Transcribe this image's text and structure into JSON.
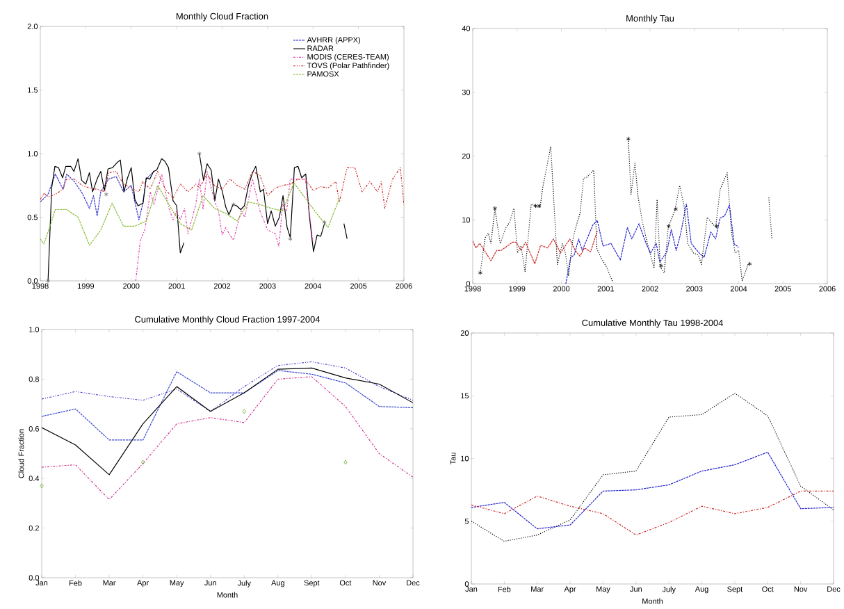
{
  "chart_data": [
    {
      "type": "line",
      "title": "Monthly Cloud Fraction",
      "xlim": [
        1998,
        2006
      ],
      "xticks": [
        1998,
        1999,
        2000,
        2001,
        2002,
        2003,
        2004,
        2005,
        2006
      ],
      "ylim": [
        0,
        2
      ],
      "yticks": [
        {
          "value": 0,
          "label": "0.0"
        },
        {
          "value": 0.5,
          "label": "0.5"
        },
        {
          "value": 1,
          "label": "1.0"
        },
        {
          "value": 1.5,
          "label": "1.5"
        },
        {
          "value": 2,
          "label": "2.0"
        }
      ],
      "legend": "top right",
      "marker": "none",
      "series": [
        {
          "name": "AVHRR (APPX)",
          "color": "#3333cc",
          "line_style": "dashed",
          "x": [
            1998.0,
            1998.17,
            1998.33,
            1998.5,
            1998.58,
            1998.75,
            1998.92,
            1999.08,
            1999.17,
            1999.25,
            1999.33,
            1999.5,
            1999.67,
            1999.83,
            2000.0,
            2000.08,
            2000.17,
            2000.25,
            2000.33,
            2000.5
          ],
          "values": [
            0.62,
            0.68,
            0.84,
            0.72,
            0.84,
            0.78,
            0.69,
            0.57,
            0.67,
            0.51,
            0.7,
            0.8,
            0.82,
            0.7,
            0.75,
            0.62,
            0.48,
            0.6,
            0.8,
            0.86
          ]
        },
        {
          "name": "RADAR",
          "color": "#000000",
          "line_style": "solid",
          "x": [
            1998.17,
            1998.25,
            1998.32,
            1998.4,
            1998.49,
            1998.56,
            1998.67,
            1998.74,
            1998.83,
            1998.91,
            1999.0,
            1999.08,
            1999.15,
            1999.26,
            1999.33,
            1999.41,
            1999.49,
            1999.59,
            1999.69,
            1999.76,
            1999.84,
            1999.92,
            2000.0,
            2000.08,
            2000.15,
            2000.26,
            2000.33,
            2000.41,
            2000.49,
            2000.56,
            2000.67,
            2000.74,
            2000.82,
            2000.92,
            2001.0,
            2001.08,
            2001.16,
            2001.33,
            2001.5,
            2001.59,
            2001.67,
            2001.76,
            2001.84,
            2001.92,
            2002.0,
            2002.08,
            2002.15,
            2002.24,
            2002.32,
            2002.41,
            2002.49,
            2002.58,
            2002.67,
            2002.74,
            2002.84,
            2002.91,
            2003.0,
            2003.08,
            2003.17,
            2003.26,
            2003.34,
            2003.43,
            2003.5,
            2003.59,
            2003.67,
            2003.75,
            2003.84,
            2003.92,
            2004.01,
            2004.09,
            2004.17,
            2004.26,
            2004.47,
            2004.68,
            2004.75
          ],
          "values": [
            0.0,
            0.73,
            0.9,
            0.89,
            0.81,
            0.9,
            0.9,
            0.86,
            0.96,
            0.79,
            0.76,
            0.85,
            0.7,
            0.81,
            0.86,
            0.71,
            0.88,
            0.89,
            0.93,
            0.95,
            0.7,
            0.81,
            0.89,
            0.64,
            0.59,
            0.61,
            0.81,
            0.8,
            0.86,
            0.87,
            0.96,
            0.94,
            0.89,
            0.63,
            0.59,
            0.22,
            0.3,
            null,
            1.0,
            0.79,
            0.92,
            0.87,
            0.63,
            0.8,
            0.71,
            0.58,
            0.52,
            0.6,
            0.59,
            0.56,
            0.59,
            0.75,
            0.85,
            0.9,
            0.7,
            0.72,
            0.45,
            0.55,
            0.43,
            0.5,
            0.67,
            0.42,
            0.34,
            0.89,
            0.9,
            0.81,
            0.84,
            0.51,
            0.23,
            0.36,
            0.35,
            0.46,
            null,
            0.45,
            0.33
          ]
        },
        {
          "name": "MODIS (CERES-TEAM)",
          "color": "#e040b0",
          "line_style": "dashdot",
          "x": [
            2000.1,
            2000.2,
            2000.3,
            2000.42,
            2000.5,
            2000.67,
            2000.83,
            2000.92,
            2001.0,
            2001.08,
            2001.17,
            2001.25,
            2001.42,
            2001.5,
            2001.58,
            2001.67,
            2001.83,
            2001.92,
            2002.0,
            2002.08,
            2002.17,
            2002.25,
            2002.42,
            2002.5,
            2002.67,
            2002.83,
            2003.0,
            2003.17,
            2003.25,
            2003.33,
            2003.42,
            2003.5,
            2003.67,
            2003.83,
            2004.0
          ],
          "values": [
            0.0,
            0.32,
            0.4,
            0.7,
            0.6,
            0.84,
            0.57,
            0.48,
            0.55,
            0.48,
            0.57,
            0.37,
            0.6,
            0.8,
            0.56,
            0.86,
            0.63,
            0.55,
            0.36,
            0.42,
            0.36,
            0.32,
            0.55,
            0.5,
            0.8,
            0.55,
            0.4,
            0.37,
            0.27,
            0.6,
            0.55,
            0.8,
            0.8,
            0.8,
            0.3
          ]
        },
        {
          "name": "TOVS (Polar Pathfinder)",
          "color": "#cc2222",
          "line_style": "dashdotdot",
          "x": [
            1998.0,
            1998.08,
            1998.17,
            1998.33,
            1998.5,
            1998.58,
            1998.75,
            1998.92,
            1999.08,
            1999.25,
            1999.42,
            1999.5,
            1999.67,
            1999.83,
            2000.0,
            2000.17,
            2000.25,
            2000.42,
            2000.58,
            2000.75,
            2000.92,
            2001.08,
            2001.25,
            2001.42,
            2001.5,
            2001.67,
            2001.83,
            2002.0,
            2002.17,
            2002.33,
            2002.5,
            2002.67,
            2002.83,
            2003.0,
            2003.17,
            2003.33,
            2003.5,
            2003.67,
            2003.83,
            2004.0,
            2004.17,
            2004.33,
            2004.5,
            2004.58,
            2004.75,
            2004.92,
            2005.08,
            2005.25,
            2005.42,
            2005.5,
            2005.58,
            2005.75,
            2005.92,
            2006.0
          ],
          "values": [
            0.64,
            0.69,
            0.66,
            0.68,
            0.72,
            0.8,
            0.8,
            0.75,
            0.73,
            0.72,
            0.7,
            0.85,
            0.86,
            0.76,
            0.73,
            0.7,
            0.78,
            0.72,
            0.86,
            0.72,
            0.65,
            0.76,
            0.7,
            0.76,
            0.73,
            0.84,
            0.75,
            0.72,
            0.8,
            0.75,
            0.72,
            0.86,
            0.83,
            0.67,
            0.73,
            0.75,
            0.76,
            0.8,
            0.8,
            0.71,
            0.74,
            0.73,
            0.78,
            0.62,
            0.89,
            0.89,
            0.7,
            0.78,
            0.7,
            0.78,
            0.57,
            0.8,
            0.89,
            0.6
          ]
        },
        {
          "name": "PAMOSX",
          "color": "#88bb33",
          "line_style": "dashed",
          "x": [
            1998.0,
            1998.08,
            1998.25,
            1998.33,
            1998.58,
            1998.83,
            1999.08,
            1999.33,
            1999.58,
            1999.83,
            2000.08,
            2000.33,
            2000.58,
            2000.83,
            2001.08,
            2001.33,
            2001.58,
            2001.83,
            2002.08,
            2002.33,
            2002.58,
            2002.83,
            2003.08,
            2003.33,
            2003.58,
            2003.83,
            2004.08,
            2004.33,
            2004.58
          ],
          "values": [
            0.33,
            0.29,
            0.47,
            0.56,
            0.56,
            0.5,
            0.28,
            0.4,
            0.61,
            0.43,
            0.43,
            0.47,
            0.75,
            0.6,
            0.45,
            0.4,
            0.67,
            0.57,
            0.53,
            0.47,
            0.62,
            0.6,
            0.57,
            0.55,
            0.77,
            0.65,
            0.53,
            0.42,
            0.65
          ]
        },
        {
          "type": "scatter",
          "marker": "cross",
          "color": "#666666",
          "x": [
            1998.17,
            1999.45,
            2001.5,
            2002.25,
            2003.5,
            2004.25
          ],
          "values": [
            0.0,
            0.68,
            1.0,
            0.6,
            0.33,
            0.46
          ]
        }
      ]
    },
    {
      "type": "line",
      "title": "Monthly Tau",
      "xlim": [
        1998,
        2006
      ],
      "xticks": [
        1998,
        1999,
        2000,
        2001,
        2002,
        2003,
        2004,
        2005,
        2006
      ],
      "ylim": [
        0,
        40
      ],
      "yticks": [
        0,
        10,
        20,
        30,
        40
      ],
      "marker": "none",
      "series": [
        {
          "color": "#000000",
          "line_style": "dotted",
          "x": [
            1998.17,
            1998.28,
            1998.35,
            1998.41,
            1998.5,
            1998.62,
            1998.75,
            1998.83,
            1998.93,
            1999.01,
            1999.09,
            1999.18,
            1999.32,
            1999.43,
            1999.52,
            1999.58,
            1999.76,
            1999.91,
            2000.02,
            2000.09,
            2000.16,
            2000.26,
            2000.34,
            2000.42,
            2000.5,
            2000.58,
            2000.66,
            2000.73,
            2000.8,
            2000.89,
            2001.02,
            2001.15,
            2001.33,
            2001.51,
            2001.57,
            2001.66,
            2001.73,
            2001.83,
            2001.94,
            2002.09,
            2002.16,
            2002.23,
            2002.32,
            2002.41,
            2002.56,
            2002.67,
            2002.77,
            2002.85,
            2002.98,
            2003.09,
            2003.16,
            2003.29,
            2003.48,
            2003.58,
            2003.74,
            2003.84,
            2003.92,
            2004.0,
            2004.08,
            2004.21,
            2004.25,
            2004.47,
            2004.68,
            2004.75
          ],
          "values": [
            1.7,
            7.2,
            7.9,
            6.3,
            11.7,
            6.3,
            8.8,
            9.6,
            11.8,
            4.8,
            5.9,
            1.9,
            12.5,
            12.0,
            12.0,
            15.1,
            21.5,
            3.0,
            6.3,
            4.8,
            1.2,
            7.0,
            9.2,
            11.0,
            16.5,
            16.7,
            17.3,
            17.8,
            5.5,
            4.1,
            2.6,
            0.4,
            null,
            22.7,
            14.0,
            18.9,
            13.6,
            9.6,
            6.3,
            2.4,
            13.2,
            2.6,
            1.7,
            8.8,
            11.5,
            15.4,
            12.1,
            6.3,
            4.8,
            4.5,
            3.0,
            10.4,
            8.8,
            14.7,
            17.4,
            8.0,
            4.8,
            5.2,
            0.4,
            3.0,
            3.1,
            null,
            13.5,
            7.0
          ]
        },
        {
          "color": "#2222cc",
          "line_style": "dashed",
          "x": [
            2000.1,
            2000.21,
            2000.29,
            2000.39,
            2000.47,
            2000.71,
            2000.81,
            2000.94,
            2001.12,
            2001.33,
            2001.49,
            2001.59,
            2001.75,
            2001.91,
            2002.01,
            2002.14,
            2002.22,
            2002.38,
            2002.48,
            2002.59,
            2002.69,
            2002.82,
            2002.93,
            2003.11,
            2003.22,
            2003.37,
            2003.48,
            2003.58,
            2003.68,
            2003.79,
            2003.9,
            2004.0
          ],
          "values": [
            0.0,
            4.1,
            4.5,
            7.0,
            5.2,
            9.2,
            9.9,
            5.9,
            6.3,
            3.7,
            8.8,
            7.0,
            9.4,
            6.3,
            4.8,
            6.3,
            3.4,
            5.0,
            8.5,
            5.2,
            7.8,
            12.5,
            6.3,
            4.8,
            4.1,
            8.1,
            7.0,
            10.3,
            10.6,
            12.3,
            6.2,
            5.7
          ]
        },
        {
          "color": "#cc2222",
          "line_style": "dashed",
          "x": [
            1998.0,
            1998.07,
            1998.16,
            1998.41,
            1998.54,
            1998.64,
            1998.9,
            1998.98,
            1999.09,
            1999.19,
            1999.4,
            1999.53,
            1999.69,
            1999.82,
            1999.98,
            2000.19,
            2000.31,
            2000.42,
            2000.52,
            2000.66,
            2000.81
          ],
          "values": [
            6.7,
            5.6,
            6.3,
            3.6,
            5.2,
            5.2,
            6.5,
            6.5,
            5.2,
            6.5,
            3.1,
            6.0,
            5.6,
            7.0,
            4.8,
            7.0,
            5.2,
            4.3,
            5.6,
            5.0,
            8.3
          ]
        },
        {
          "type": "scatter",
          "marker": "cross",
          "color": "#000000",
          "x": [
            1998.17,
            1998.5,
            1999.42,
            1999.5,
            2001.51,
            2002.25,
            2002.42,
            2002.58,
            2003.5,
            2004.25
          ],
          "values": [
            1.7,
            11.8,
            12.2,
            12.2,
            22.7,
            2.8,
            9.0,
            11.7,
            9.0,
            3.1
          ]
        }
      ]
    },
    {
      "type": "line",
      "title": "Cumulative Monthly Cloud Fraction 1997-2004",
      "xlabel": "Month",
      "ylabel": "Cloud Fraction",
      "categories": [
        "Jan",
        "Feb",
        "Mar",
        "Apr",
        "May",
        "Jun",
        "July",
        "Aug",
        "Sept",
        "Oct",
        "Nov",
        "Dec"
      ],
      "ylim": [
        0,
        1
      ],
      "yticks": [
        {
          "value": 0,
          "label": "0.0"
        },
        {
          "value": 0.2,
          "label": "0.2"
        },
        {
          "value": 0.4,
          "label": "0.4"
        },
        {
          "value": 0.6,
          "label": "0.6"
        },
        {
          "value": 0.8,
          "label": "0.8"
        },
        {
          "value": 1,
          "label": "1.0"
        }
      ],
      "marker": "none",
      "series": [
        {
          "color": "#5a3fcf",
          "line_style": "dashdotdot",
          "values": [
            0.72,
            0.75,
            0.73,
            0.715,
            0.76,
            0.67,
            0.77,
            0.855,
            0.87,
            0.845,
            0.77,
            0.715
          ]
        },
        {
          "color": "#3344cc",
          "line_style": "dashed",
          "values": [
            0.65,
            0.68,
            0.555,
            0.555,
            0.83,
            0.745,
            0.745,
            0.835,
            0.82,
            0.785,
            0.69,
            0.685
          ]
        },
        {
          "color": "#000000",
          "line_style": "solid",
          "values": [
            0.605,
            0.535,
            0.415,
            0.62,
            0.77,
            0.67,
            0.745,
            0.84,
            0.845,
            0.805,
            0.78,
            0.705
          ]
        },
        {
          "color": "#d03090",
          "line_style": "dashdot",
          "values": [
            0.445,
            0.455,
            0.315,
            0.46,
            0.62,
            0.645,
            0.625,
            0.8,
            0.81,
            0.69,
            0.5,
            0.405
          ]
        },
        {
          "type": "scatter",
          "marker": "diamond",
          "color": "#66aa22",
          "values": [
            0.37,
            null,
            null,
            0.465,
            null,
            null,
            0.67,
            null,
            null,
            0.465,
            null,
            null
          ]
        }
      ]
    },
    {
      "type": "line",
      "title": "Cumulative Monthly Tau 1998-2004",
      "xlabel": "Month",
      "ylabel": "Tau",
      "categories": [
        "Jan",
        "Feb",
        "Mar",
        "Apr",
        "May",
        "Jun",
        "July",
        "Aug",
        "Sept",
        "Oct",
        "Nov",
        "Dec"
      ],
      "ylim": [
        0,
        20
      ],
      "yticks": [
        0,
        5,
        10,
        15,
        20
      ],
      "marker": "none",
      "series": [
        {
          "color": "#000000",
          "line_style": "dotted",
          "values": [
            5.0,
            3.4,
            3.9,
            5.1,
            8.7,
            9.0,
            13.3,
            13.5,
            15.2,
            13.4,
            7.8,
            5.9
          ]
        },
        {
          "color": "#2222cc",
          "line_style": "dashed",
          "values": [
            6.1,
            6.5,
            4.4,
            4.7,
            7.4,
            7.5,
            7.9,
            9.0,
            9.5,
            10.5,
            6.0,
            6.1
          ]
        },
        {
          "color": "#cc2222",
          "line_style": "dashdot",
          "values": [
            6.3,
            5.6,
            7.0,
            6.2,
            5.6,
            3.9,
            4.9,
            6.2,
            5.6,
            6.1,
            7.4,
            7.4
          ]
        }
      ]
    }
  ]
}
